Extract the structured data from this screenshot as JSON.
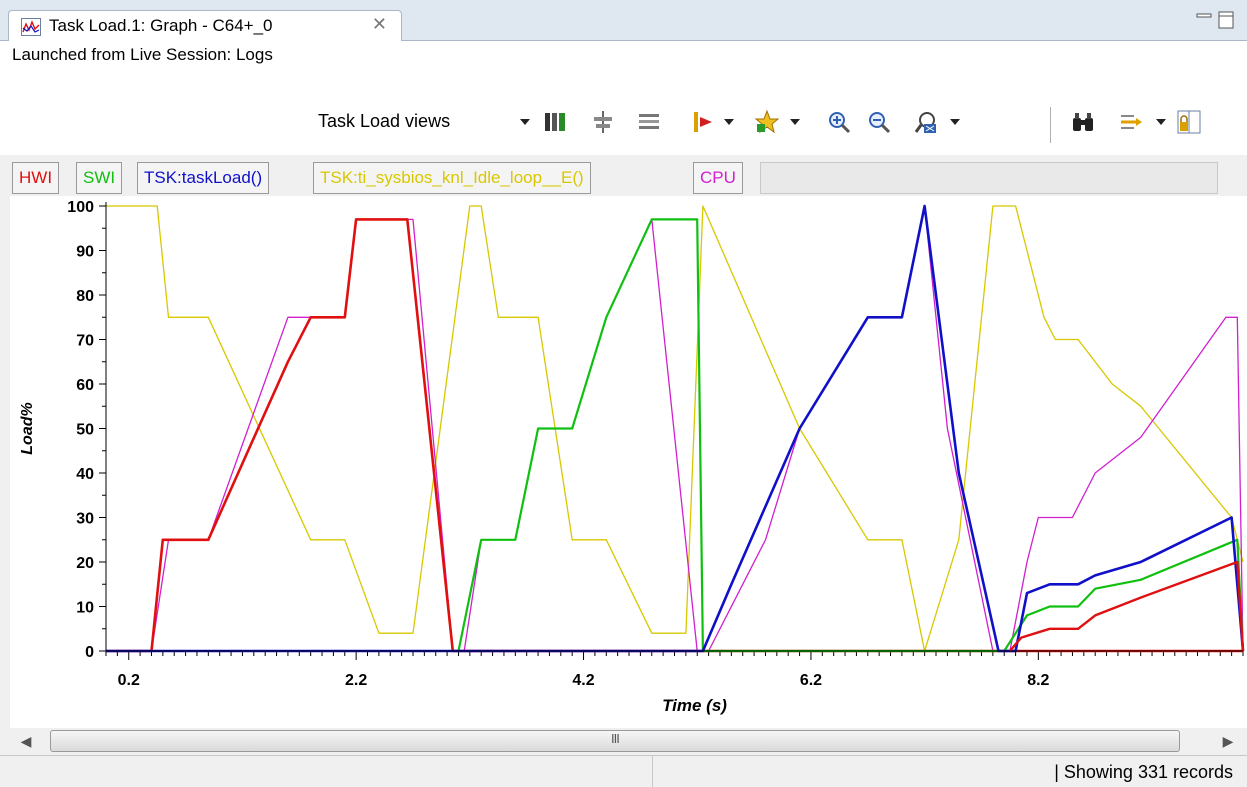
{
  "tab": {
    "title": "Task Load.1: Graph - C64+_0",
    "close_glyph": "✕",
    "icon": "graph-icon"
  },
  "window_buttons": {
    "minimize": "minimize-icon",
    "maximize": "maximize-icon"
  },
  "subtitle": "Launched from Live Session: Logs",
  "toolbar": {
    "views_label": "Task Load views",
    "icons": [
      "columns-icon",
      "align-icon",
      "filter-icon",
      "bookmark-icon",
      "star-icon",
      "zoom-in-icon",
      "zoom-out-icon",
      "zoom-fit-icon",
      "find-icon",
      "group-icon",
      "lock-icon"
    ]
  },
  "legend": [
    {
      "label": "HWI",
      "color": "#e01010"
    },
    {
      "label": "SWI",
      "color": "#10c010"
    },
    {
      "label": "TSK:taskLoad()",
      "color": "#1010c8"
    },
    {
      "label": "TSK:ti_sysbios_knl_Idle_loop__E()",
      "color": "#d8c800"
    },
    {
      "label": "CPU",
      "color": "#d020d0"
    }
  ],
  "chart_data": {
    "type": "line",
    "xlabel": "Time  (s)",
    "ylabel": "Load%",
    "xlim": [
      0.0,
      10.0
    ],
    "ylim": [
      0,
      100
    ],
    "x_ticks": [
      "0.2",
      "2.2",
      "4.2",
      "6.2",
      "8.2"
    ],
    "y_ticks": [
      "0",
      "10",
      "20",
      "30",
      "40",
      "50",
      "60",
      "70",
      "80",
      "90",
      "100"
    ],
    "grid": false,
    "series": [
      {
        "name": "TSK:ti_sysbios_knl_Idle_loop__E()",
        "color": "#d8c800",
        "width": 1.3,
        "x": [
          0.0,
          0.45,
          0.55,
          0.9,
          1.8,
          2.1,
          2.4,
          2.7,
          3.2,
          3.3,
          3.45,
          3.8,
          4.1,
          4.4,
          4.8,
          5.1,
          5.25,
          6.1,
          6.7,
          7.0,
          7.2,
          7.5,
          7.8,
          8.0,
          8.25,
          8.35,
          8.55,
          8.85,
          9.1,
          9.9,
          10.0
        ],
        "y": [
          100,
          100,
          75,
          75,
          25,
          25,
          4,
          4,
          100,
          100,
          75,
          75,
          25,
          25,
          4,
          4,
          100,
          50,
          25,
          25,
          0,
          25,
          100,
          100,
          75,
          70,
          70,
          60,
          55,
          30,
          20
        ]
      },
      {
        "name": "CPU",
        "color": "#d020d0",
        "width": 1.3,
        "x": [
          0.0,
          0.4,
          0.55,
          0.9,
          1.6,
          1.8,
          2.1,
          2.2,
          2.5,
          2.7,
          3.05,
          3.15,
          3.3,
          3.6,
          3.8,
          4.1,
          4.4,
          4.8,
          5.2,
          5.3,
          5.8,
          6.1,
          6.7,
          7.0,
          7.2,
          7.4,
          7.8,
          7.95,
          8.1,
          8.2,
          8.5,
          8.7,
          9.1,
          9.85,
          9.95,
          10.0
        ],
        "y": [
          0,
          0,
          25,
          25,
          75,
          75,
          75,
          97,
          97,
          97,
          0,
          0,
          25,
          25,
          50,
          50,
          75,
          97,
          0,
          0,
          25,
          50,
          75,
          75,
          100,
          50,
          0,
          0,
          20,
          30,
          30,
          40,
          48,
          75,
          75,
          0
        ]
      },
      {
        "name": "HWI",
        "color": "#e01010",
        "width": 2.6,
        "x": [
          0.0,
          0.4,
          0.5,
          0.9,
          1.6,
          1.8,
          2.1,
          2.2,
          2.5,
          2.65,
          3.05,
          3.1,
          10.0
        ],
        "y": [
          0,
          0,
          25,
          25,
          65,
          75,
          75,
          97,
          97,
          97,
          0,
          0,
          0
        ]
      },
      {
        "name": "SWI",
        "color": "#10c010",
        "width": 2.2,
        "x": [
          3.1,
          3.3,
          3.6,
          3.8,
          4.1,
          4.4,
          4.8,
          5.2,
          5.25,
          7.9,
          8.1,
          8.3,
          8.55,
          8.7,
          9.1,
          9.95,
          10.0
        ],
        "y": [
          0,
          25,
          25,
          50,
          50,
          75,
          97,
          97,
          0,
          0,
          8,
          10,
          10,
          14,
          16,
          25,
          0
        ]
      },
      {
        "name": "TSK:taskLoad()",
        "color": "#1010c8",
        "width": 2.6,
        "x": [
          0.0,
          5.25,
          5.5,
          6.1,
          6.7,
          7.0,
          7.2,
          7.5,
          7.85,
          8.0,
          8.1,
          8.3,
          8.55,
          8.7,
          9.1,
          9.9,
          10.0
        ],
        "y": [
          0,
          0,
          15,
          50,
          75,
          75,
          100,
          40,
          0,
          0,
          13,
          15,
          15,
          17,
          20,
          30,
          0
        ]
      },
      {
        "name": "HWI-tail",
        "color": "#e01010",
        "width": 2.4,
        "x": [
          7.95,
          8.05,
          8.3,
          8.55,
          8.7,
          9.1,
          9.95,
          10.0
        ],
        "y": [
          0,
          3,
          5,
          5,
          8,
          12,
          20,
          0
        ]
      }
    ]
  },
  "scrollbar": {
    "grip": "III"
  },
  "status": {
    "records": "| Showing 331 records"
  }
}
